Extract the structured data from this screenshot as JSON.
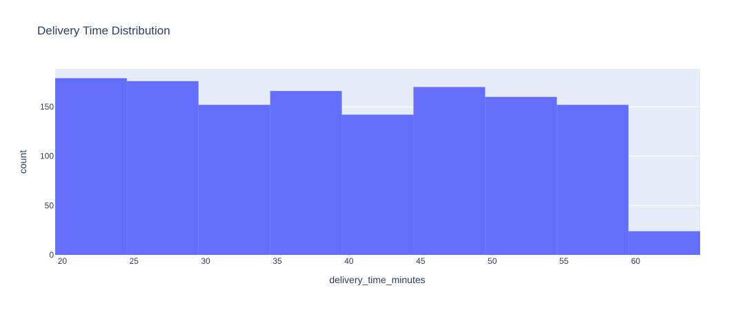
{
  "chart_data": {
    "type": "bar",
    "title": "Delivery Time Distribution",
    "xlabel": "delivery_time_minutes",
    "ylabel": "count",
    "bin_size": 5,
    "bins": [
      {
        "start": 19.5,
        "end": 24.5,
        "count": 179
      },
      {
        "start": 24.5,
        "end": 29.5,
        "count": 176
      },
      {
        "start": 29.5,
        "end": 34.5,
        "count": 152
      },
      {
        "start": 34.5,
        "end": 39.5,
        "count": 166
      },
      {
        "start": 39.5,
        "end": 44.5,
        "count": 142
      },
      {
        "start": 44.5,
        "end": 49.5,
        "count": 170
      },
      {
        "start": 49.5,
        "end": 54.5,
        "count": 160
      },
      {
        "start": 54.5,
        "end": 59.5,
        "count": 152
      },
      {
        "start": 59.5,
        "end": 64.5,
        "count": 24
      }
    ],
    "xlim": [
      19.5,
      64.5
    ],
    "ylim": [
      0,
      188.4
    ],
    "x_ticks": [
      "20",
      "25",
      "30",
      "35",
      "40",
      "45",
      "50",
      "55",
      "60"
    ],
    "y_ticks": [
      "0",
      "50",
      "100",
      "150"
    ],
    "grid": true,
    "colors": {
      "bar": "#636efa",
      "plot_bg": "#e5ecf6",
      "grid": "#ffffff",
      "text": "#2a3f5f"
    }
  }
}
